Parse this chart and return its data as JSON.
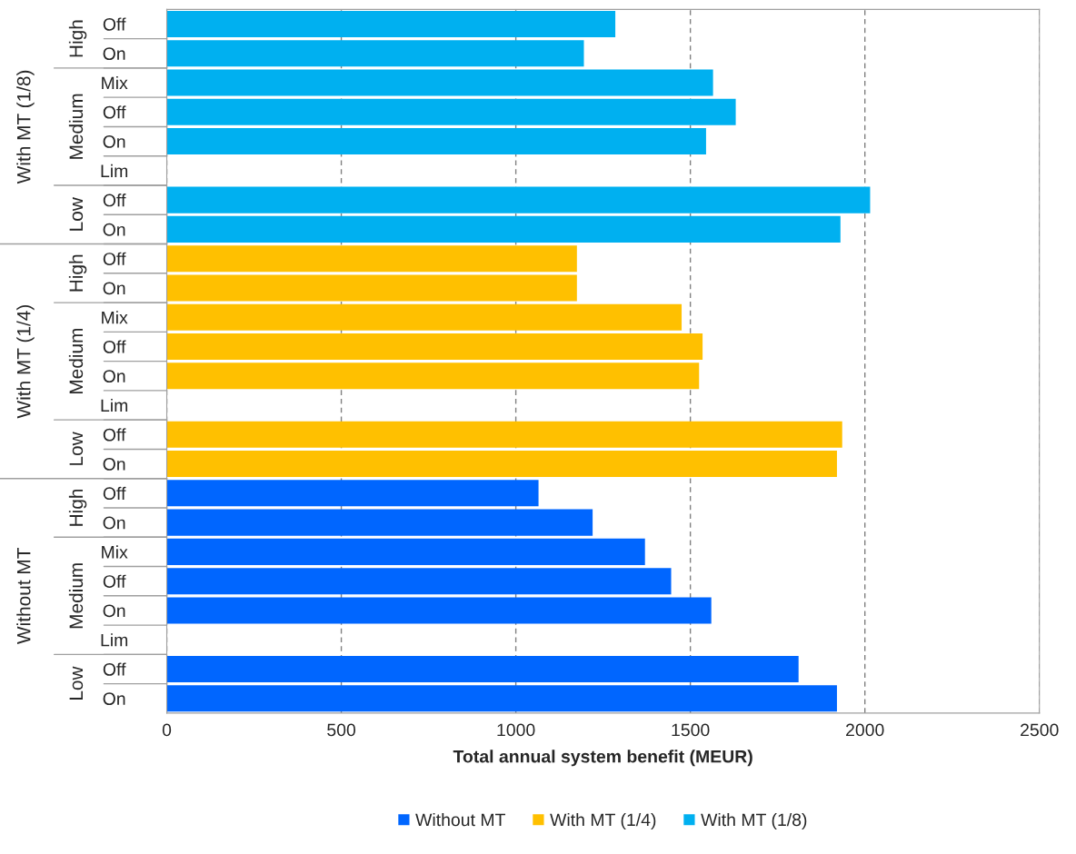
{
  "chart_data": {
    "type": "bar",
    "orientation": "horizontal",
    "xlabel": "Total annual system benefit (MEUR)",
    "categories": [
      "Off",
      "On",
      "Mix",
      "Off",
      "On",
      "Lim",
      "Off",
      "On",
      "Off",
      "On",
      "Mix",
      "Off",
      "On",
      "Lim",
      "Off",
      "On",
      "Off",
      "On",
      "Mix",
      "Off",
      "On",
      "Lim",
      "Off",
      "On"
    ],
    "series": [
      {
        "name": "Without MT",
        "color": "#0066ff",
        "values": [
          null,
          null,
          null,
          null,
          null,
          null,
          null,
          null,
          null,
          null,
          null,
          null,
          null,
          null,
          null,
          null,
          1065,
          1220,
          1370,
          1445,
          1560,
          null,
          1810,
          1920
        ]
      },
      {
        "name": "With MT (1/4)",
        "color": "#ffc000",
        "values": [
          null,
          null,
          null,
          null,
          null,
          null,
          null,
          null,
          1175,
          1175,
          1475,
          1535,
          1525,
          null,
          1935,
          1920,
          null,
          null,
          null,
          null,
          null,
          null,
          null,
          null
        ]
      },
      {
        "name": "With MT (1/8)",
        "color": "#00b0f0",
        "values": [
          1285,
          1195,
          1565,
          1630,
          1545,
          null,
          2015,
          1930,
          null,
          null,
          null,
          null,
          null,
          null,
          null,
          null,
          null,
          null,
          null,
          null,
          null,
          null,
          null,
          null
        ]
      }
    ],
    "annotations": [
      "With MT (1/8)",
      "High",
      "Medium",
      "Low",
      "With MT (1/4)",
      "High",
      "Medium",
      "Low",
      "Without MT",
      "High",
      "Medium",
      "Low"
    ],
    "xlim": [
      0,
      2500
    ],
    "xticks": [
      0,
      500,
      1000,
      1500,
      2000,
      2500
    ],
    "grid": "x",
    "legend": "bottom"
  }
}
